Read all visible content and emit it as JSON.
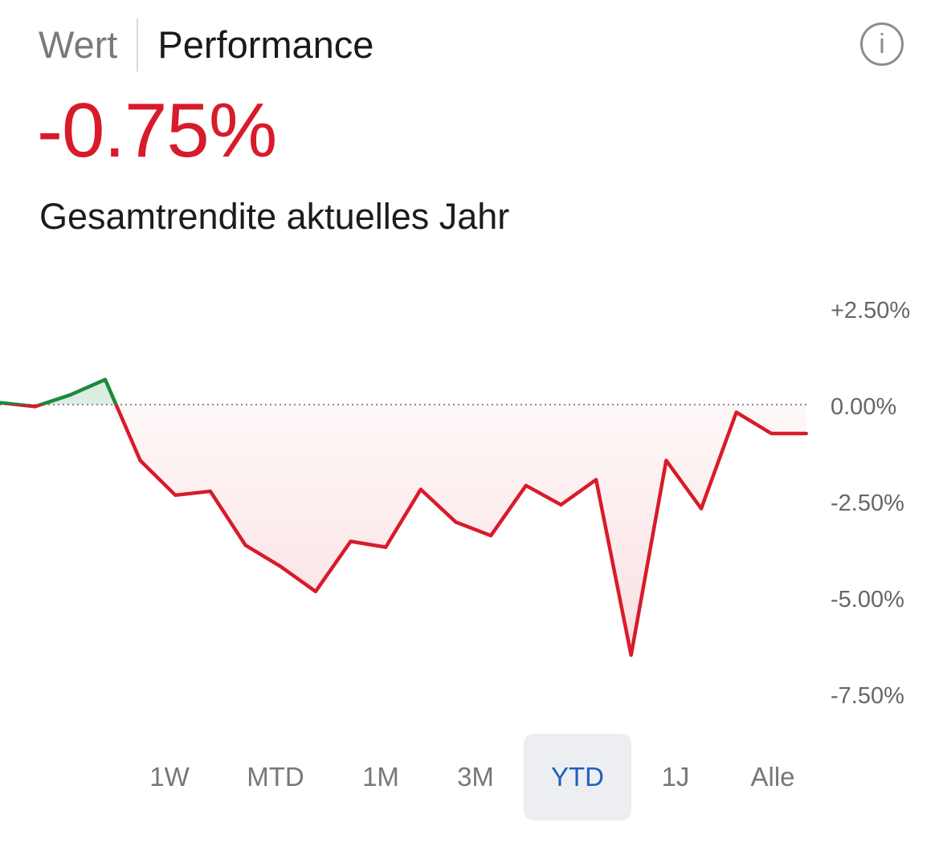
{
  "tabs": {
    "wert": "Wert",
    "performance": "Performance",
    "active": "Performance"
  },
  "info_icon": "info-icon",
  "info_glyph": "i",
  "headline": {
    "value": "-0.75%",
    "caption": "Gesamtrendite aktuelles Jahr"
  },
  "colors": {
    "negative": "#d81b2a",
    "positive": "#1a8a3c",
    "active_period": "#1f5fbf"
  },
  "periods": [
    "1W",
    "MTD",
    "1M",
    "3M",
    "YTD",
    "1J",
    "Alle"
  ],
  "selected_period": "YTD",
  "chart_data": {
    "type": "line",
    "title": "",
    "xlabel": "",
    "ylabel": "",
    "y_unit": "%",
    "ylim": [
      -9.5,
      3.5
    ],
    "yticks": [
      2.5,
      0,
      -2.5,
      -5,
      -7.5
    ],
    "ytick_labels": [
      "+2.50%",
      "0.00%",
      "-2.50%",
      "-5.00%",
      "-7.50%"
    ],
    "baseline": 0,
    "grid": false,
    "legend": "none",
    "x": [
      0,
      1,
      2,
      3,
      4,
      5,
      6,
      7,
      8,
      9,
      10,
      11,
      12,
      13,
      14,
      15,
      16,
      17,
      18,
      19,
      20,
      21,
      22,
      23
    ],
    "values": [
      0.05,
      -0.05,
      0.25,
      0.65,
      -1.45,
      -2.35,
      -2.25,
      -3.65,
      -4.2,
      -4.85,
      -3.55,
      -3.7,
      -2.2,
      -3.05,
      -3.4,
      -2.1,
      -2.6,
      -1.95,
      -6.5,
      -1.45,
      -2.7,
      -0.2,
      -0.75,
      -0.75
    ]
  }
}
